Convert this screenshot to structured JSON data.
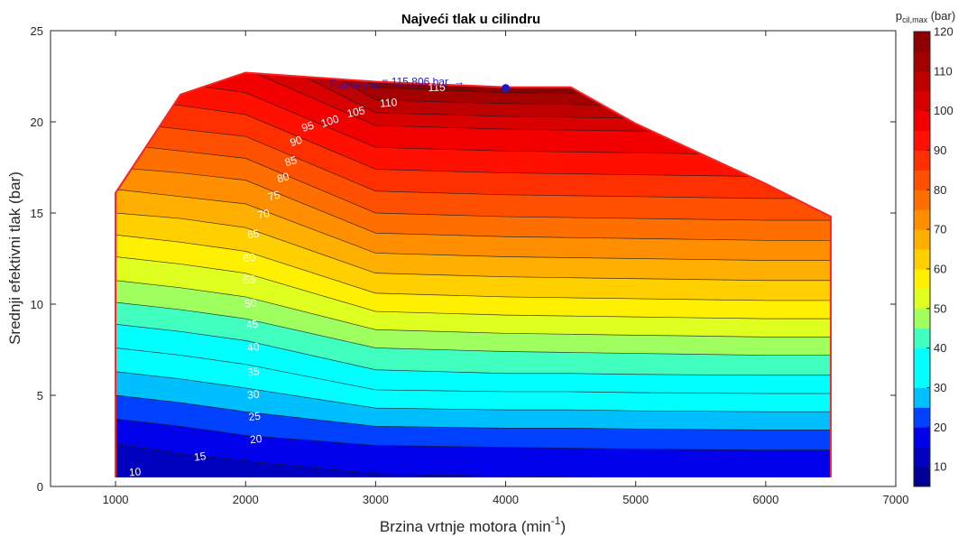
{
  "chart_data": {
    "type": "contourf",
    "title": "Najveći tlak u cilindru",
    "xlabel_main": "Brzina vrtnje motora (min",
    "xlabel_sup": "-1",
    "xlabel_end": ")",
    "ylabel": "Srednji efektivni tlak (bar)",
    "xlim": [
      500,
      7000
    ],
    "ylim": [
      0,
      25
    ],
    "xticks": [
      1000,
      2000,
      3000,
      4000,
      5000,
      6000,
      7000
    ],
    "yticks": [
      0,
      5,
      10,
      15,
      20,
      25
    ],
    "colorbar": {
      "label_main": "p",
      "label_sub": "cil,max",
      "label_unit": " (bar)",
      "ticks": [
        10,
        20,
        30,
        40,
        50,
        60,
        70,
        80,
        90,
        100,
        110,
        120
      ],
      "range": [
        5,
        120
      ]
    },
    "x": [
      1000,
      1500,
      2000,
      3000,
      4000,
      4500,
      5000,
      6000,
      6500
    ],
    "boundary_top": [
      16.1,
      21.5,
      22.7,
      22.2,
      21.9,
      21.9,
      19.9,
      16.6,
      14.8
    ],
    "contour_levels": [
      10,
      15,
      20,
      25,
      30,
      35,
      40,
      45,
      50,
      55,
      60,
      65,
      70,
      75,
      80,
      85,
      90,
      95,
      100,
      105,
      110,
      115
    ],
    "isolines": [
      {
        "level": 10,
        "y": [
          0.5,
          0.35,
          0.3,
          0.25,
          0.2,
          0.2,
          0.2,
          0.2,
          0.2
        ]
      },
      {
        "level": 15,
        "y": [
          2.35,
          1.8,
          1.4,
          0.7,
          0.55,
          0.5,
          0.45,
          0.4,
          0.35
        ]
      },
      {
        "level": 20,
        "y": [
          3.7,
          3.3,
          2.8,
          2.25,
          2.15,
          2.1,
          2.05,
          2.0,
          2.0
        ]
      },
      {
        "level": 25,
        "y": [
          5.0,
          4.6,
          4.1,
          3.3,
          3.2,
          3.2,
          3.15,
          3.1,
          3.1
        ]
      },
      {
        "level": 30,
        "y": [
          6.3,
          5.9,
          5.4,
          4.3,
          4.2,
          4.2,
          4.15,
          4.1,
          4.1
        ]
      },
      {
        "level": 35,
        "y": [
          7.6,
          7.2,
          6.7,
          5.3,
          5.2,
          5.2,
          5.15,
          5.1,
          5.1
        ]
      },
      {
        "level": 40,
        "y": [
          8.9,
          8.5,
          8.0,
          6.4,
          6.2,
          6.2,
          6.15,
          6.1,
          6.1
        ]
      },
      {
        "level": 45,
        "y": [
          10.1,
          9.7,
          9.2,
          7.6,
          7.4,
          7.35,
          7.3,
          7.2,
          7.2
        ]
      },
      {
        "level": 50,
        "y": [
          11.3,
          10.9,
          10.4,
          8.6,
          8.4,
          8.35,
          8.3,
          8.2,
          8.2
        ]
      },
      {
        "level": 55,
        "y": [
          12.6,
          12.2,
          11.7,
          9.6,
          9.4,
          9.35,
          9.3,
          9.2,
          9.2
        ]
      },
      {
        "level": 60,
        "y": [
          13.8,
          13.4,
          12.9,
          10.6,
          10.4,
          10.35,
          10.3,
          10.2,
          10.2
        ]
      },
      {
        "level": 65,
        "y": [
          15.0,
          14.7,
          14.2,
          11.7,
          11.5,
          11.45,
          11.4,
          11.3,
          11.3
        ]
      },
      {
        "level": 70,
        "y": [
          16.3,
          15.9,
          15.5,
          12.8,
          12.6,
          12.55,
          12.5,
          12.4,
          12.4
        ]
      },
      {
        "level": 75,
        "y": [
          17.5,
          17.2,
          16.8,
          13.9,
          13.7,
          13.65,
          13.6,
          13.5,
          13.5
        ]
      },
      {
        "level": 80,
        "y": [
          18.8,
          18.4,
          18.0,
          15.0,
          14.8,
          14.75,
          14.7,
          14.6,
          14.6
        ]
      },
      {
        "level": 85,
        "y": [
          20.0,
          19.6,
          19.2,
          16.2,
          16.0,
          15.95,
          15.9,
          15.8,
          15.8
        ]
      },
      {
        "level": 90,
        "y": [
          21.3,
          20.9,
          20.4,
          17.4,
          17.2,
          17.15,
          17.1,
          17.0,
          17.0
        ]
      },
      {
        "level": 95,
        "y": [
          22.6,
          22.1,
          21.6,
          18.6,
          18.4,
          18.35,
          18.3,
          18.2,
          18.2
        ]
      },
      {
        "level": 100,
        "y": [
          23.8,
          23.4,
          22.9,
          19.8,
          19.6,
          19.55,
          19.5,
          19.4,
          19.4
        ]
      },
      {
        "level": 105,
        "y": [
          25.1,
          24.6,
          24.1,
          20.5,
          20.3,
          20.25,
          20.2,
          20.1,
          20.1
        ]
      },
      {
        "level": 110,
        "y": [
          26.3,
          25.9,
          25.4,
          21.2,
          21.0,
          20.95,
          20.9,
          20.8,
          20.8
        ]
      },
      {
        "level": 115,
        "y": [
          27.5,
          27.1,
          26.6,
          21.9,
          21.6,
          21.55,
          21.5,
          21.4,
          21.4
        ]
      }
    ],
    "contour_labels": [
      {
        "text": "10",
        "x": 1150,
        "y": 0.75,
        "rot": -4
      },
      {
        "text": "15",
        "x": 1650,
        "y": 1.6,
        "rot": -8
      },
      {
        "text": "20",
        "x": 2080,
        "y": 2.55,
        "rot": -6
      },
      {
        "text": "25",
        "x": 2070,
        "y": 3.8,
        "rot": -6
      },
      {
        "text": "30",
        "x": 2060,
        "y": 5.0,
        "rot": -6
      },
      {
        "text": "35",
        "x": 2060,
        "y": 6.25,
        "rot": -6
      },
      {
        "text": "40",
        "x": 2060,
        "y": 7.6,
        "rot": -6
      },
      {
        "text": "45",
        "x": 2050,
        "y": 8.85,
        "rot": -6
      },
      {
        "text": "50",
        "x": 2040,
        "y": 10.0,
        "rot": -6
      },
      {
        "text": "55",
        "x": 2030,
        "y": 11.3,
        "rot": -6
      },
      {
        "text": "60",
        "x": 2030,
        "y": 12.5,
        "rot": -6
      },
      {
        "text": "65",
        "x": 2060,
        "y": 13.8,
        "rot": -8
      },
      {
        "text": "70",
        "x": 2140,
        "y": 14.9,
        "rot": -12
      },
      {
        "text": "75",
        "x": 2220,
        "y": 15.9,
        "rot": -14
      },
      {
        "text": "80",
        "x": 2290,
        "y": 16.9,
        "rot": -16
      },
      {
        "text": "85",
        "x": 2350,
        "y": 17.8,
        "rot": -16
      },
      {
        "text": "90",
        "x": 2390,
        "y": 18.9,
        "rot": -18
      },
      {
        "text": "95",
        "x": 2480,
        "y": 19.7,
        "rot": -18
      },
      {
        "text": "100",
        "x": 2650,
        "y": 20.0,
        "rot": -18
      },
      {
        "text": "105",
        "x": 2850,
        "y": 20.5,
        "rot": -12
      },
      {
        "text": "110",
        "x": 3100,
        "y": 21.0,
        "rot": -5
      },
      {
        "text": "115",
        "x": 3470,
        "y": 21.85,
        "rot": -2
      }
    ],
    "annotation": {
      "text_main": "p",
      "text_sub": "cil,max,max",
      "text_rest": " = 115.806 bar",
      "arrow": "→",
      "point_x": 4000,
      "point_y": 21.85,
      "label_x": 2650,
      "label_y": 22.0
    },
    "boundary_color": "#ff2020"
  }
}
